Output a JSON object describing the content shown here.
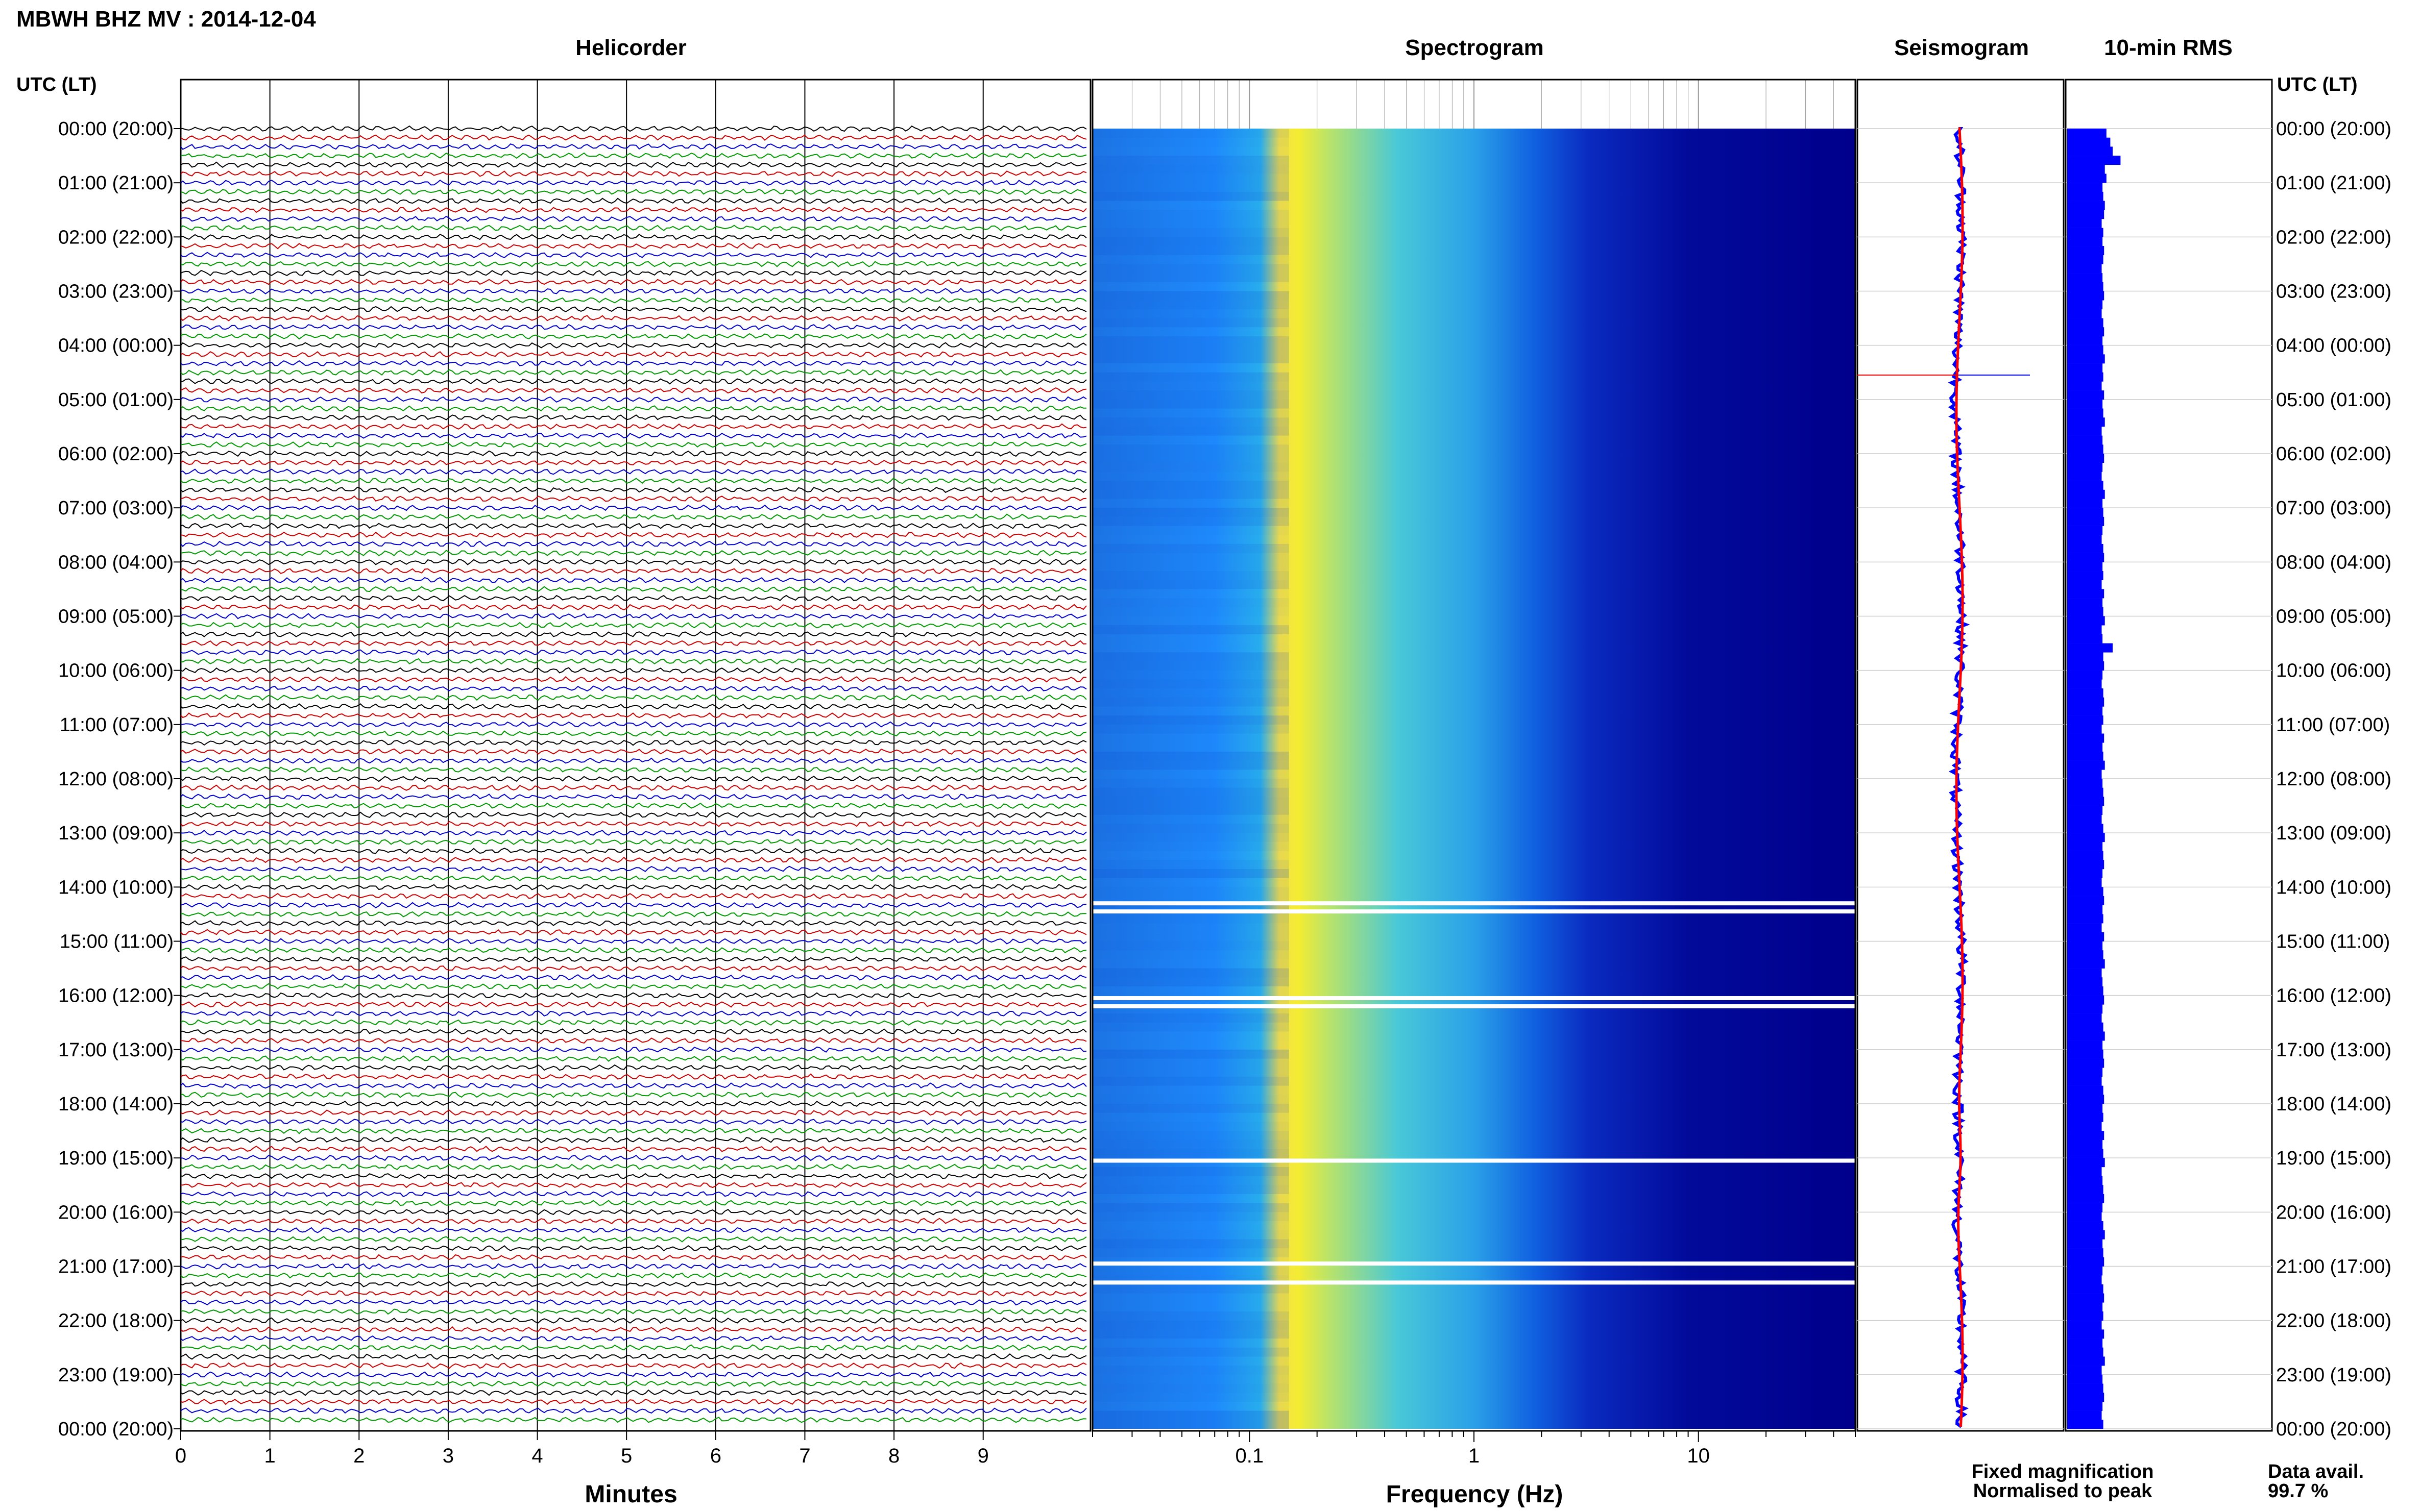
{
  "title": "MBWH BHZ MV : 2014-12-04",
  "panels": {
    "helicorder": "Helicorder",
    "spectrogram": "Spectrogram",
    "seismogram": "Seismogram",
    "rms": "10-min RMS"
  },
  "time_axis_label": "UTC (LT)",
  "x_labels": {
    "helicorder": "Minutes",
    "spectrogram": "Frequency (Hz)"
  },
  "legend": {
    "fixed": "Fixed magnification",
    "normalised": "Normalised to peak",
    "fixed_color": "#0000ff",
    "normalised_color": "#ff0000"
  },
  "data_avail": {
    "label": "Data avail.",
    "value": "99.7 %"
  },
  "colors": {
    "trace_cycle": [
      "#000000",
      "#cc0000",
      "#0000cc",
      "#009900"
    ],
    "spectrogram_low": "#00008b",
    "spectrogram_high": "#ffff00",
    "rms_bar": "#0000ff"
  },
  "chart_data": {
    "type": "helicorder",
    "station": "MBWH",
    "channel": "BHZ",
    "network": "MV",
    "date": "2014-12-04",
    "time_ticks": [
      "00:00 (20:00)",
      "01:00 (21:00)",
      "02:00 (22:00)",
      "03:00 (23:00)",
      "04:00 (00:00)",
      "05:00 (01:00)",
      "06:00 (02:00)",
      "07:00 (03:00)",
      "08:00 (04:00)",
      "09:00 (05:00)",
      "10:00 (06:00)",
      "11:00 (07:00)",
      "12:00 (08:00)",
      "13:00 (09:00)",
      "14:00 (10:00)",
      "15:00 (11:00)",
      "16:00 (12:00)",
      "17:00 (13:00)",
      "18:00 (14:00)",
      "19:00 (15:00)",
      "20:00 (16:00)",
      "21:00 (17:00)",
      "22:00 (18:00)",
      "23:00 (19:00)",
      "00:00 (20:00)"
    ],
    "helicorder": {
      "x_ticks": [
        "0",
        "1",
        "2",
        "3",
        "4",
        "5",
        "6",
        "7",
        "8",
        "9"
      ],
      "xlim": [
        0,
        10
      ],
      "lines": 144,
      "minutes_per_line": 10
    },
    "spectrogram": {
      "x_scale": "log",
      "xlim": [
        0.02,
        50
      ],
      "x_tick_labels": [
        "0.1",
        "1",
        "10"
      ],
      "gaps_hours": [
        14.3,
        14.45,
        16.05,
        16.2,
        19.05,
        20.95,
        21.3
      ]
    },
    "rms": {
      "interval_minutes": 10,
      "values": [
        0.5,
        0.55,
        0.58,
        0.68,
        0.48,
        0.5,
        0.45,
        0.46,
        0.48,
        0.47,
        0.44,
        0.46,
        0.45,
        0.47,
        0.46,
        0.44,
        0.45,
        0.46,
        0.47,
        0.45,
        0.44,
        0.46,
        0.47,
        0.45,
        0.46,
        0.48,
        0.45,
        0.46,
        0.44,
        0.47,
        0.45,
        0.46,
        0.48,
        0.44,
        0.45,
        0.46,
        0.47,
        0.45,
        0.44,
        0.46,
        0.48,
        0.45,
        0.46,
        0.47,
        0.45,
        0.44,
        0.46,
        0.47,
        0.45,
        0.46,
        0.44,
        0.47,
        0.45,
        0.46,
        0.48,
        0.44,
        0.45,
        0.58,
        0.46,
        0.47,
        0.45,
        0.44,
        0.46,
        0.47,
        0.45,
        0.46,
        0.44,
        0.47,
        0.45,
        0.46,
        0.48,
        0.44,
        0.45,
        0.46,
        0.47,
        0.45,
        0.44,
        0.46,
        0.48,
        0.45,
        0.46,
        0.47,
        0.45,
        0.44,
        0.46,
        0.47,
        0.45,
        0.46,
        0.44,
        0.47,
        0.45,
        0.46,
        0.48,
        0.44,
        0.45,
        0.46,
        0.47,
        0.45,
        0.44,
        0.46,
        0.48,
        0.45,
        0.46,
        0.47,
        0.45,
        0.44,
        0.46,
        0.47,
        0.45,
        0.46,
        0.44,
        0.47,
        0.45,
        0.46,
        0.48,
        0.44,
        0.45,
        0.46,
        0.47,
        0.45,
        0.44,
        0.46,
        0.48,
        0.45,
        0.46,
        0.47,
        0.45,
        0.44,
        0.46,
        0.47,
        0.45,
        0.46,
        0.44,
        0.47,
        0.45,
        0.46,
        0.48,
        0.44,
        0.45,
        0.46,
        0.47,
        0.45,
        0.44,
        0.46
      ]
    },
    "seismogram": {
      "fixed_color": "#0000ff",
      "normalised_color": "#ff0000",
      "spike_hour": 4.55
    }
  }
}
